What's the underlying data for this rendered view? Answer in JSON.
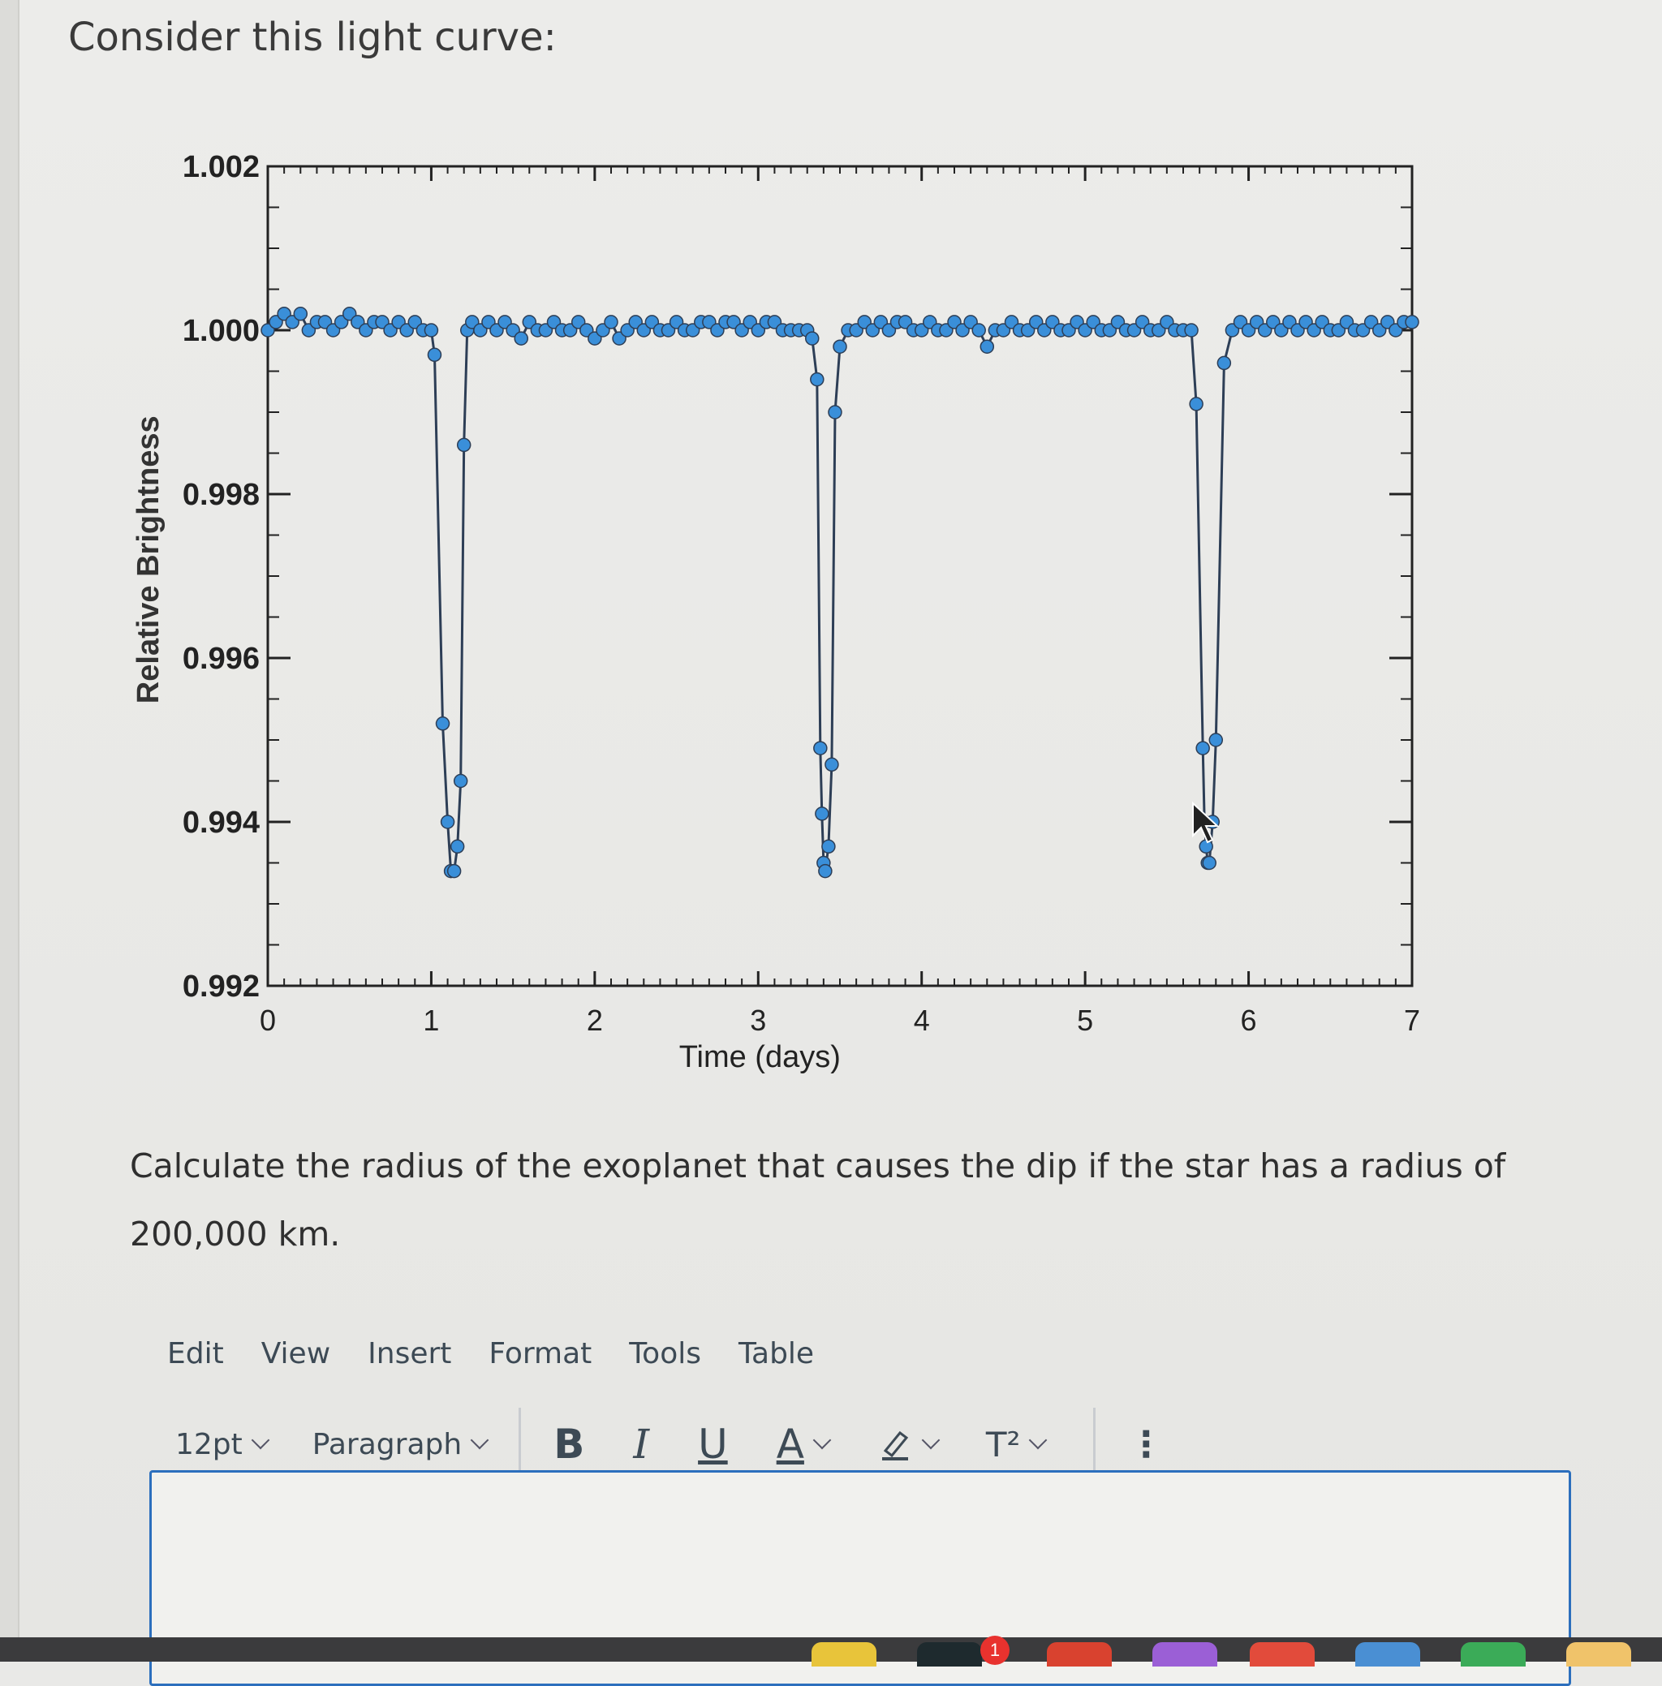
{
  "question": {
    "title": "Consider this light curve:",
    "prompt": "Calculate the radius of the exoplanet that causes the dip if the star has a radius of 200,000 km."
  },
  "chart_data": {
    "type": "scatter",
    "xlabel": "Time (days)",
    "ylabel": "Relative Brightness",
    "xlim": [
      0,
      7
    ],
    "ylim": [
      0.992,
      1.002
    ],
    "x_ticks": [
      "0",
      "1",
      "2",
      "3",
      "4",
      "5",
      "6",
      "7"
    ],
    "y_ticks": [
      "0.992",
      "0.994",
      "0.996",
      "0.998",
      "1.000",
      "1.002"
    ],
    "series_color": "#3a8fd9",
    "line_color": "#2d3e56",
    "baseline": 1.0,
    "transit_depth_min": 0.9934,
    "transits": [
      {
        "ingress_start": 1.02,
        "egress_end": 1.22,
        "min": 0.9934
      },
      {
        "ingress_start": 3.36,
        "egress_end": 3.57,
        "min": 0.9934
      },
      {
        "ingress_start": 5.68,
        "egress_end": 5.9,
        "min": 0.9935
      }
    ],
    "points": [
      [
        0.0,
        1.0
      ],
      [
        0.05,
        1.0001
      ],
      [
        0.1,
        1.0002
      ],
      [
        0.15,
        1.0001
      ],
      [
        0.2,
        1.0002
      ],
      [
        0.25,
        1.0
      ],
      [
        0.3,
        1.0001
      ],
      [
        0.35,
        1.0001
      ],
      [
        0.4,
        1.0
      ],
      [
        0.45,
        1.0001
      ],
      [
        0.5,
        1.0002
      ],
      [
        0.55,
        1.0001
      ],
      [
        0.6,
        1.0
      ],
      [
        0.65,
        1.0001
      ],
      [
        0.7,
        1.0001
      ],
      [
        0.75,
        1.0
      ],
      [
        0.8,
        1.0001
      ],
      [
        0.85,
        1.0
      ],
      [
        0.9,
        1.0001
      ],
      [
        0.95,
        1.0
      ],
      [
        1.0,
        1.0
      ],
      [
        1.02,
        0.9997
      ],
      [
        1.07,
        0.9952
      ],
      [
        1.1,
        0.994
      ],
      [
        1.12,
        0.9934
      ],
      [
        1.14,
        0.9934
      ],
      [
        1.16,
        0.9937
      ],
      [
        1.18,
        0.9945
      ],
      [
        1.2,
        0.9986
      ],
      [
        1.22,
        1.0
      ],
      [
        1.25,
        1.0001
      ],
      [
        1.3,
        1.0
      ],
      [
        1.35,
        1.0001
      ],
      [
        1.4,
        1.0
      ],
      [
        1.45,
        1.0001
      ],
      [
        1.5,
        1.0
      ],
      [
        1.55,
        0.9999
      ],
      [
        1.6,
        1.0001
      ],
      [
        1.65,
        1.0
      ],
      [
        1.7,
        1.0
      ],
      [
        1.75,
        1.0001
      ],
      [
        1.8,
        1.0
      ],
      [
        1.85,
        1.0
      ],
      [
        1.9,
        1.0001
      ],
      [
        1.95,
        1.0
      ],
      [
        2.0,
        0.9999
      ],
      [
        2.05,
        1.0
      ],
      [
        2.1,
        1.0001
      ],
      [
        2.15,
        0.9999
      ],
      [
        2.2,
        1.0
      ],
      [
        2.25,
        1.0001
      ],
      [
        2.3,
        1.0
      ],
      [
        2.35,
        1.0001
      ],
      [
        2.4,
        1.0
      ],
      [
        2.45,
        1.0
      ],
      [
        2.5,
        1.0001
      ],
      [
        2.55,
        1.0
      ],
      [
        2.6,
        1.0
      ],
      [
        2.65,
        1.0001
      ],
      [
        2.7,
        1.0001
      ],
      [
        2.75,
        1.0
      ],
      [
        2.8,
        1.0001
      ],
      [
        2.85,
        1.0001
      ],
      [
        2.9,
        1.0
      ],
      [
        2.95,
        1.0001
      ],
      [
        3.0,
        1.0
      ],
      [
        3.05,
        1.0001
      ],
      [
        3.1,
        1.0001
      ],
      [
        3.15,
        1.0
      ],
      [
        3.2,
        1.0
      ],
      [
        3.25,
        1.0
      ],
      [
        3.3,
        1.0
      ],
      [
        3.33,
        0.9999
      ],
      [
        3.36,
        0.9994
      ],
      [
        3.38,
        0.9949
      ],
      [
        3.39,
        0.9941
      ],
      [
        3.4,
        0.9935
      ],
      [
        3.41,
        0.9934
      ],
      [
        3.43,
        0.9937
      ],
      [
        3.45,
        0.9947
      ],
      [
        3.47,
        0.999
      ],
      [
        3.5,
        0.9998
      ],
      [
        3.55,
        1.0
      ],
      [
        3.6,
        1.0
      ],
      [
        3.65,
        1.0001
      ],
      [
        3.7,
        1.0
      ],
      [
        3.75,
        1.0001
      ],
      [
        3.8,
        1.0
      ],
      [
        3.85,
        1.0001
      ],
      [
        3.9,
        1.0001
      ],
      [
        3.95,
        1.0
      ],
      [
        4.0,
        1.0
      ],
      [
        4.05,
        1.0001
      ],
      [
        4.1,
        1.0
      ],
      [
        4.15,
        1.0
      ],
      [
        4.2,
        1.0001
      ],
      [
        4.25,
        1.0
      ],
      [
        4.3,
        1.0001
      ],
      [
        4.35,
        1.0
      ],
      [
        4.4,
        0.9998
      ],
      [
        4.45,
        1.0
      ],
      [
        4.5,
        1.0
      ],
      [
        4.55,
        1.0001
      ],
      [
        4.6,
        1.0
      ],
      [
        4.65,
        1.0
      ],
      [
        4.7,
        1.0001
      ],
      [
        4.75,
        1.0
      ],
      [
        4.8,
        1.0001
      ],
      [
        4.85,
        1.0
      ],
      [
        4.9,
        1.0
      ],
      [
        4.95,
        1.0001
      ],
      [
        5.0,
        1.0
      ],
      [
        5.05,
        1.0001
      ],
      [
        5.1,
        1.0
      ],
      [
        5.15,
        1.0
      ],
      [
        5.2,
        1.0001
      ],
      [
        5.25,
        1.0
      ],
      [
        5.3,
        1.0
      ],
      [
        5.35,
        1.0001
      ],
      [
        5.4,
        1.0
      ],
      [
        5.45,
        1.0
      ],
      [
        5.5,
        1.0001
      ],
      [
        5.55,
        1.0
      ],
      [
        5.6,
        1.0
      ],
      [
        5.65,
        1.0
      ],
      [
        5.68,
        0.9991
      ],
      [
        5.72,
        0.9949
      ],
      [
        5.73,
        0.994
      ],
      [
        5.74,
        0.9937
      ],
      [
        5.75,
        0.9935
      ],
      [
        5.76,
        0.9935
      ],
      [
        5.78,
        0.994
      ],
      [
        5.8,
        0.995
      ],
      [
        5.85,
        0.9996
      ],
      [
        5.9,
        1.0
      ],
      [
        5.95,
        1.0001
      ],
      [
        6.0,
        1.0
      ],
      [
        6.05,
        1.0001
      ],
      [
        6.1,
        1.0
      ],
      [
        6.15,
        1.0001
      ],
      [
        6.2,
        1.0
      ],
      [
        6.25,
        1.0001
      ],
      [
        6.3,
        1.0
      ],
      [
        6.35,
        1.0001
      ],
      [
        6.4,
        1.0
      ],
      [
        6.45,
        1.0001
      ],
      [
        6.5,
        1.0
      ],
      [
        6.55,
        1.0
      ],
      [
        6.6,
        1.0001
      ],
      [
        6.65,
        1.0
      ],
      [
        6.7,
        1.0
      ],
      [
        6.75,
        1.0001
      ],
      [
        6.8,
        1.0
      ],
      [
        6.85,
        1.0001
      ],
      [
        6.9,
        1.0
      ],
      [
        6.95,
        1.0001
      ],
      [
        7.0,
        1.0001
      ]
    ]
  },
  "editor": {
    "menu": [
      "Edit",
      "View",
      "Insert",
      "Format",
      "Tools",
      "Table"
    ],
    "font_size": "12pt",
    "block_format": "Paragraph",
    "bold": "B",
    "italic": "I",
    "underline": "U",
    "text_color": "A",
    "superscript": "T²",
    "more": "⋮",
    "accent_color": "#2c6fbd"
  },
  "dock": {
    "badge_count": "1"
  }
}
